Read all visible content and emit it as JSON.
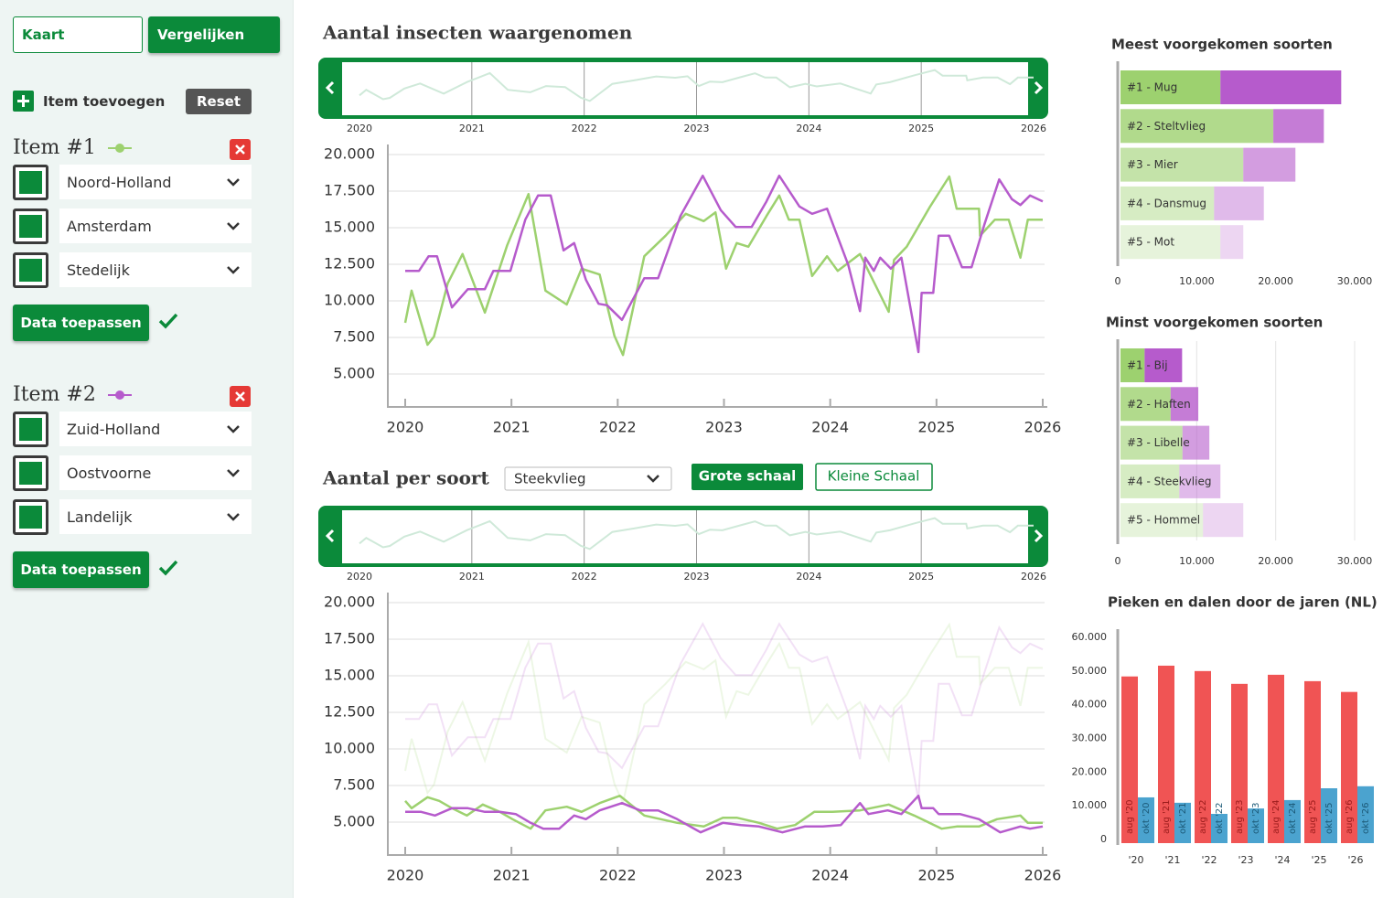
{
  "sidebar": {
    "tabs": [
      "Kaart",
      "Vergelijken"
    ],
    "add_item": "Item toevoegen",
    "reset": "Reset",
    "items": [
      {
        "title": "Item #1",
        "selects": [
          "Noord-Holland",
          "Amsterdam",
          "Stedelijk"
        ],
        "apply": "Data toepassen"
      },
      {
        "title": "Item #2",
        "selects": [
          "Zuid-Holland",
          "Oostvoorne",
          "Landelijk"
        ],
        "apply": "Data toepassen"
      }
    ]
  },
  "chart_data": [
    {
      "type": "line",
      "title": "Aantal insecten waargenomen",
      "xlim": [
        2020,
        2026
      ],
      "xticks": [
        2020,
        2021,
        2022,
        2023,
        2024,
        2025,
        2026
      ],
      "ylim": [
        2500,
        20500
      ],
      "yticks": [
        {
          "value": 5000,
          "label": "5.000"
        },
        {
          "value": 7500,
          "label": "7.500"
        },
        {
          "value": 10000,
          "label": "10.000"
        },
        {
          "value": 12500,
          "label": "12.500"
        },
        {
          "value": 15000,
          "label": "15.000"
        },
        {
          "value": 17500,
          "label": "17.500"
        },
        {
          "value": 20000,
          "label": "20.000"
        }
      ],
      "grid": true,
      "series": [
        {
          "color": "#9dd16f",
          "x": [
            2020.0,
            2020.06,
            2020.21,
            2020.27,
            2020.4,
            2020.54,
            2020.75,
            2020.96,
            2021.06,
            2021.16,
            2021.32,
            2021.52,
            2021.66,
            2021.83,
            2021.97,
            2022.05,
            2022.25,
            2022.45,
            2022.64,
            2022.81,
            2022.92,
            2023.02,
            2023.12,
            2023.23,
            2023.4,
            2023.52,
            2023.61,
            2023.71,
            2023.83,
            2023.97,
            2024.07,
            2024.28,
            2024.55,
            2024.6,
            2024.72,
            2024.94,
            2025.12,
            2025.19,
            2025.4,
            2025.41,
            2025.55,
            2025.68,
            2025.79,
            2025.86,
            2026.0
          ],
          "values": [
            8500,
            10700,
            7000,
            7550,
            11200,
            13200,
            9200,
            13800,
            15550,
            17300,
            10700,
            9750,
            12200,
            11800,
            7600,
            6300,
            13050,
            14450,
            15950,
            15450,
            16050,
            12200,
            13950,
            13700,
            15800,
            17200,
            15550,
            15550,
            11700,
            13050,
            12050,
            13200,
            9250,
            12800,
            13700,
            16450,
            18500,
            16300,
            16300,
            14450,
            15550,
            15550,
            12950,
            15550,
            15550
          ]
        },
        {
          "color": "#b65bcc",
          "x": [
            2020.0,
            2020.13,
            2020.22,
            2020.3,
            2020.44,
            2020.59,
            2020.75,
            2020.83,
            2020.99,
            2021.13,
            2021.25,
            2021.37,
            2021.49,
            2021.59,
            2021.7,
            2021.82,
            2021.9,
            2022.04,
            2022.25,
            2022.38,
            2022.59,
            2022.8,
            2022.97,
            2023.11,
            2023.26,
            2023.4,
            2023.52,
            2023.71,
            2023.83,
            2023.97,
            2024.17,
            2024.28,
            2024.33,
            2024.41,
            2024.47,
            2024.57,
            2024.67,
            2024.83,
            2024.86,
            2024.97,
            2025.02,
            2025.12,
            2025.24,
            2025.33,
            2025.45,
            2025.59,
            2025.71,
            2025.79,
            2025.88,
            2026.0
          ],
          "values": [
            12050,
            12050,
            13050,
            13050,
            9550,
            10800,
            10800,
            12050,
            12050,
            15550,
            17200,
            17200,
            13450,
            13950,
            11450,
            9800,
            9700,
            8700,
            11550,
            11550,
            15800,
            18550,
            16200,
            15050,
            15050,
            16800,
            18550,
            16450,
            15950,
            16300,
            12450,
            9300,
            12950,
            12050,
            12950,
            12200,
            12950,
            6500,
            10550,
            10550,
            14450,
            14450,
            12300,
            12300,
            15200,
            18300,
            16950,
            16550,
            17200,
            16800
          ]
        }
      ]
    },
    {
      "type": "line",
      "title": "Aantal per soort",
      "dropdown": "Steekvlieg",
      "buttons": [
        "Grote schaal",
        "Kleine Schaal"
      ],
      "xlim": [
        2020,
        2026
      ],
      "xticks": [
        2020,
        2021,
        2022,
        2023,
        2024,
        2025,
        2026
      ],
      "ylim": [
        2500,
        20500
      ],
      "yticks": [
        {
          "value": 5000,
          "label": "5.000"
        },
        {
          "value": 7500,
          "label": "7.500"
        },
        {
          "value": 10000,
          "label": "10.000"
        },
        {
          "value": 12500,
          "label": "12.500"
        },
        {
          "value": 15000,
          "label": "15.000"
        },
        {
          "value": 17500,
          "label": "17.500"
        },
        {
          "value": 20000,
          "label": "20.000"
        }
      ],
      "grid": true,
      "series": [
        {
          "color": "#9dd16f",
          "x": [
            2020.0,
            2020.06,
            2020.21,
            2020.32,
            2020.44,
            2020.58,
            2020.73,
            2020.89,
            2021.01,
            2021.18,
            2021.32,
            2021.52,
            2021.66,
            2021.83,
            2022.02,
            2022.25,
            2022.56,
            2022.81,
            2022.99,
            2023.12,
            2023.33,
            2023.5,
            2023.67,
            2023.85,
            2024.02,
            2024.28,
            2024.55,
            2024.79,
            2025.05,
            2025.19,
            2025.4,
            2025.57,
            2025.79,
            2025.86,
            2026.0
          ],
          "values": [
            6450,
            5950,
            6700,
            6450,
            5950,
            5450,
            6200,
            5700,
            5200,
            4550,
            5800,
            6050,
            5700,
            6300,
            6800,
            5450,
            4950,
            4700,
            5300,
            5300,
            4950,
            4550,
            4800,
            5700,
            5700,
            5800,
            6200,
            5450,
            4550,
            4700,
            4700,
            5200,
            5450,
            4950,
            4950
          ]
        },
        {
          "color": "#b65bcc",
          "x": [
            2020.0,
            2020.15,
            2020.28,
            2020.44,
            2020.59,
            2020.75,
            2020.89,
            2021.04,
            2021.18,
            2021.3,
            2021.45,
            2021.59,
            2021.7,
            2021.83,
            2022.04,
            2022.21,
            2022.38,
            2022.56,
            2022.78,
            2022.99,
            2023.16,
            2023.33,
            2023.55,
            2023.76,
            2023.93,
            2024.1,
            2024.28,
            2024.36,
            2024.54,
            2024.67,
            2024.83,
            2024.86,
            2024.97,
            2025.02,
            2025.22,
            2025.4,
            2025.6,
            2025.79,
            2025.88,
            2026.0
          ],
          "values": [
            5700,
            5700,
            5450,
            5950,
            5950,
            5700,
            5700,
            5550,
            4950,
            4550,
            4550,
            5450,
            5200,
            5800,
            6300,
            5800,
            5800,
            5200,
            4300,
            4950,
            4800,
            4700,
            4300,
            4700,
            4700,
            4800,
            6300,
            5550,
            5800,
            5550,
            6800,
            5950,
            5950,
            5550,
            5550,
            5200,
            4300,
            4700,
            4550,
            4700
          ]
        }
      ]
    },
    {
      "type": "hbar",
      "title": "Meest voorgekomen soorten",
      "categories": [
        "#1 - Mug",
        "#2 - Steltvlieg",
        "#3 - Mier",
        "#4 - Dansmug",
        "#5 - Mot"
      ],
      "series": [
        {
          "color": "#9dd16f",
          "values": [
            13000,
            19700,
            15900,
            12200,
            13000
          ]
        },
        {
          "color": "#b65bcc",
          "values": [
            15300,
            6400,
            6600,
            6300,
            2900
          ]
        }
      ],
      "xlim": [
        0,
        30000
      ],
      "xticks": [
        0,
        {
          "value": 10000,
          "label": "10.000"
        },
        {
          "value": 20000,
          "label": "20.000"
        },
        {
          "value": 30000,
          "label": "30.000"
        }
      ]
    },
    {
      "type": "hbar",
      "title": "Minst voorgekomen soorten",
      "categories": [
        "#1 - Bij",
        "#2 - Haften",
        "#3 - Libelle",
        "#4 - Steekvlieg",
        "#5 - Hommel"
      ],
      "series": [
        {
          "color": "#9dd16f",
          "values": [
            3400,
            6700,
            8200,
            7800,
            10800
          ]
        },
        {
          "color": "#b65bcc",
          "values": [
            4750,
            3500,
            3400,
            5200,
            5100
          ]
        }
      ],
      "xlim": [
        0,
        30000
      ],
      "xticks": [
        0,
        {
          "value": 10000,
          "label": "10.000"
        },
        {
          "value": 20000,
          "label": "20.000"
        },
        {
          "value": 30000,
          "label": "30.000"
        }
      ],
      "grid": true
    },
    {
      "type": "bar",
      "title": "Pieken en dalen door de jaren (NL)",
      "categories": [
        "'20",
        "'21",
        "'22",
        "'23",
        "'24",
        "'25",
        "'26"
      ],
      "series": [
        {
          "color": "#f05454",
          "values": [
            48400,
            51600,
            50000,
            46200,
            48900,
            47000,
            43800
          ],
          "bar_labels": [
            "aug '20",
            "aug '21",
            "aug '22",
            "aug '23",
            "aug '24",
            "aug '25",
            "aug '26"
          ]
        },
        {
          "color": "#4ba3cf",
          "values": [
            12500,
            10900,
            7600,
            9200,
            11700,
            15200,
            15800
          ],
          "bar_labels": [
            "okt '20",
            "okt '21",
            "okt '22",
            "okt '23",
            "okt '24",
            "okt '25",
            "okt '26"
          ]
        }
      ],
      "ylim": [
        0,
        60000
      ],
      "yticks": [
        0,
        {
          "value": 10000,
          "label": "10.000"
        },
        {
          "value": 20000,
          "label": "20.000"
        },
        {
          "value": 30000,
          "label": "30.000"
        },
        {
          "value": 40000,
          "label": "40.000"
        },
        {
          "value": 50000,
          "label": "50.000"
        },
        {
          "value": 60000,
          "label": "60.000"
        }
      ]
    }
  ]
}
